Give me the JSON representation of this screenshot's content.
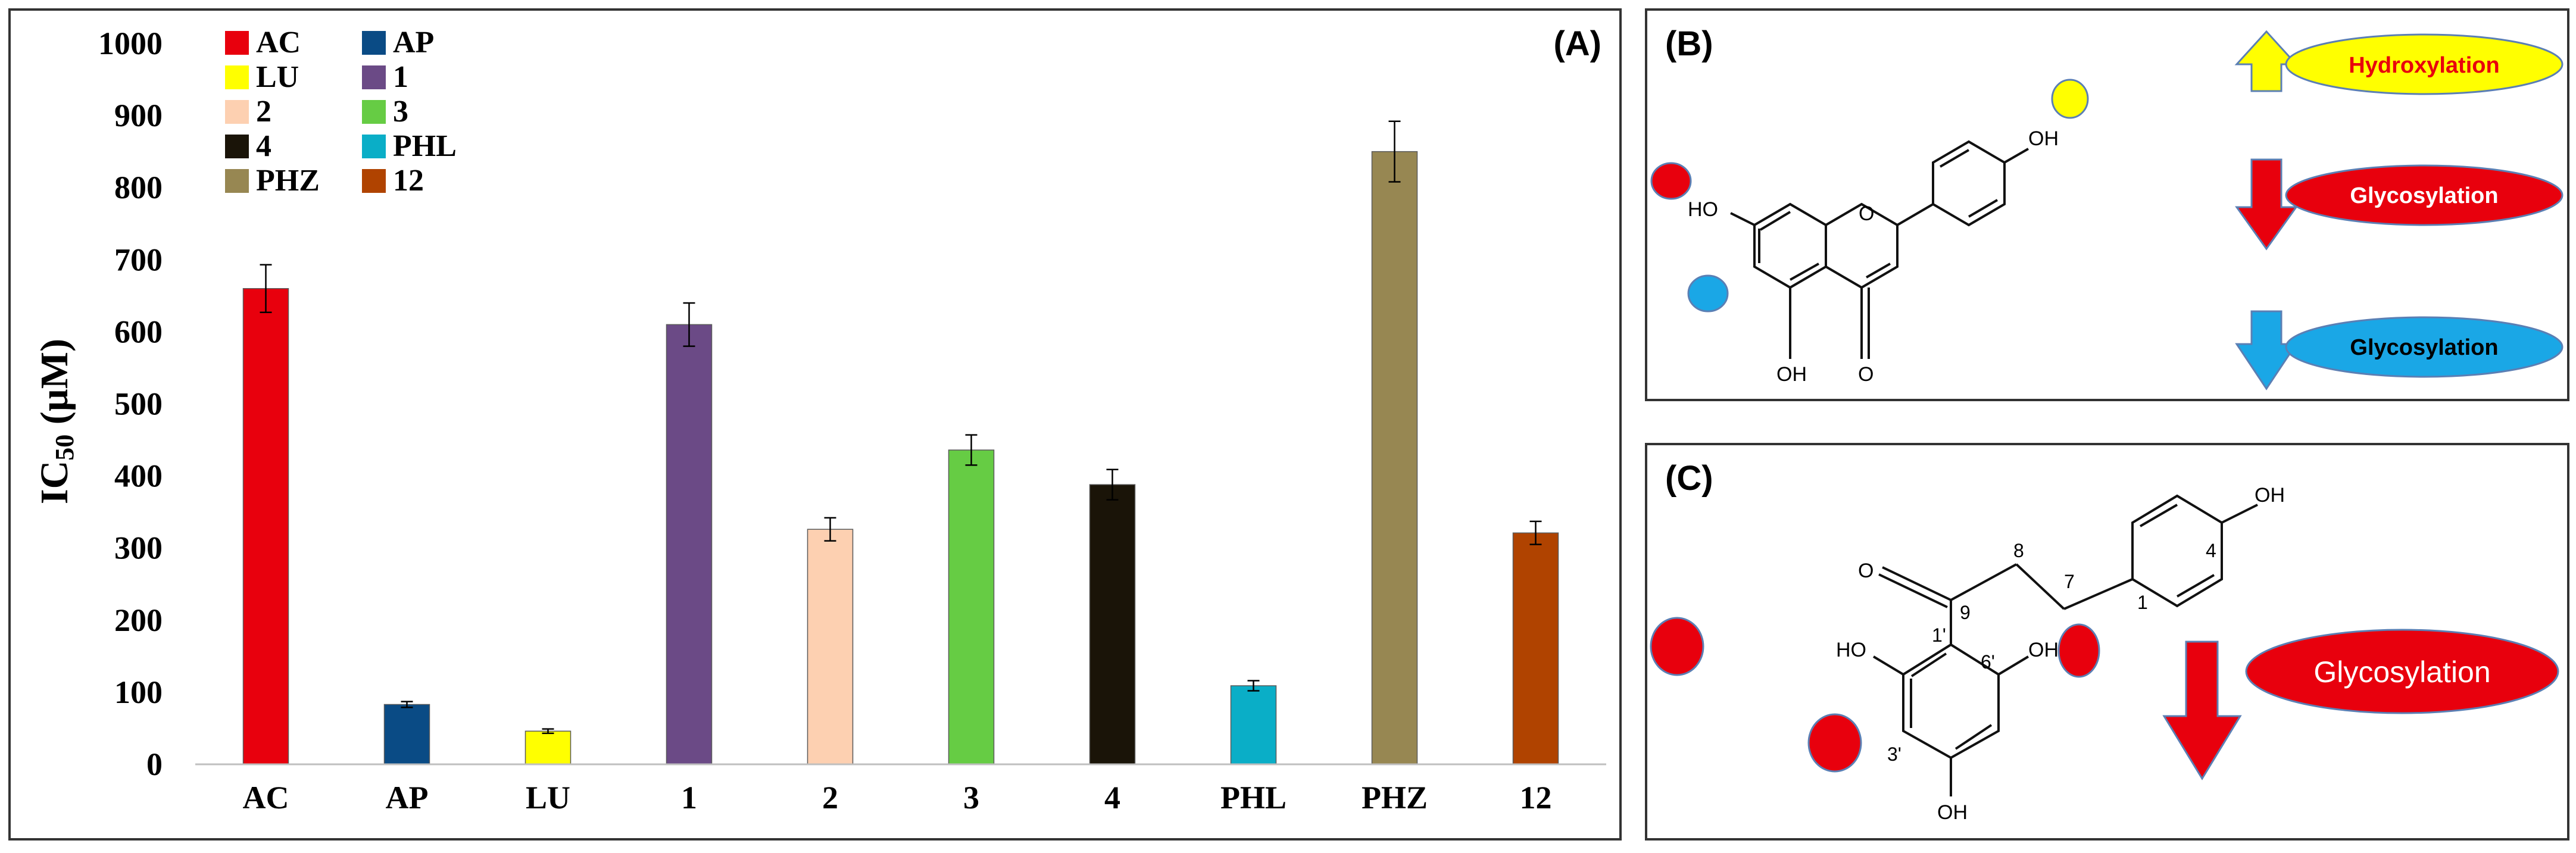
{
  "chart_data": {
    "type": "bar",
    "panel_label": "(A)",
    "ylabel": "IC50 (µM)",
    "ylabel_main": "IC",
    "ylabel_sub": "50",
    "ylabel_unit": " (µM)",
    "xlabel": "",
    "ylim": [
      0,
      1000
    ],
    "yticks": [
      0,
      100,
      200,
      300,
      400,
      500,
      600,
      700,
      800,
      900,
      1000
    ],
    "grid": false,
    "legend_position": "top-left",
    "categories": [
      "AC",
      "AP",
      "LU",
      "1",
      "2",
      "3",
      "4",
      "PHL",
      "PHZ",
      "12"
    ],
    "values": [
      660,
      83,
      46,
      610,
      326,
      436,
      388,
      109,
      850,
      321
    ],
    "errors": [
      33,
      4,
      3,
      30,
      16,
      21,
      21,
      7,
      42,
      16
    ],
    "colors": [
      "#e8000d",
      "#0a4b85",
      "#ffff00",
      "#6b4a86",
      "#fdd0b1",
      "#66cc44",
      "#1a1408",
      "#0aaec7",
      "#978752",
      "#b04300"
    ]
  },
  "panel_b": {
    "label": "(B)",
    "atoms": {
      "oh_top": "OH",
      "oh_left": "HO",
      "ring_o": "O",
      "oh_bottom": "OH",
      "keto_o": "O"
    },
    "legend": [
      {
        "text": "Hydroxylation",
        "direction": "up",
        "arrow_color": "#ffff00",
        "fill": "#ffff00",
        "text_color": "#e8000d"
      },
      {
        "text": "Glycosylation",
        "direction": "down",
        "arrow_color": "#e8000d",
        "fill": "#e8000d",
        "text_color": "#ffffff"
      },
      {
        "text": "Glycosylation",
        "direction": "down",
        "arrow_color": "#1aa7e6",
        "fill": "#1aa7e6",
        "text_color": "#000000"
      }
    ]
  },
  "panel_c": {
    "label": "(C)",
    "atoms": {
      "oh_4": "OH",
      "o_keto": "O",
      "ho_2": "HO",
      "oh_6": "OH",
      "oh_4p": "OH"
    },
    "numbers": {
      "n4": "4",
      "n8": "8",
      "n7": "7",
      "n1": "1",
      "n9": "9",
      "n1p": "1'",
      "n6p": "6'",
      "n3p": "3'"
    },
    "legend": {
      "text": "Glycosylation",
      "arrow_color": "#e8000d",
      "fill": "#e8000d",
      "text_color": "#ffffff"
    }
  }
}
